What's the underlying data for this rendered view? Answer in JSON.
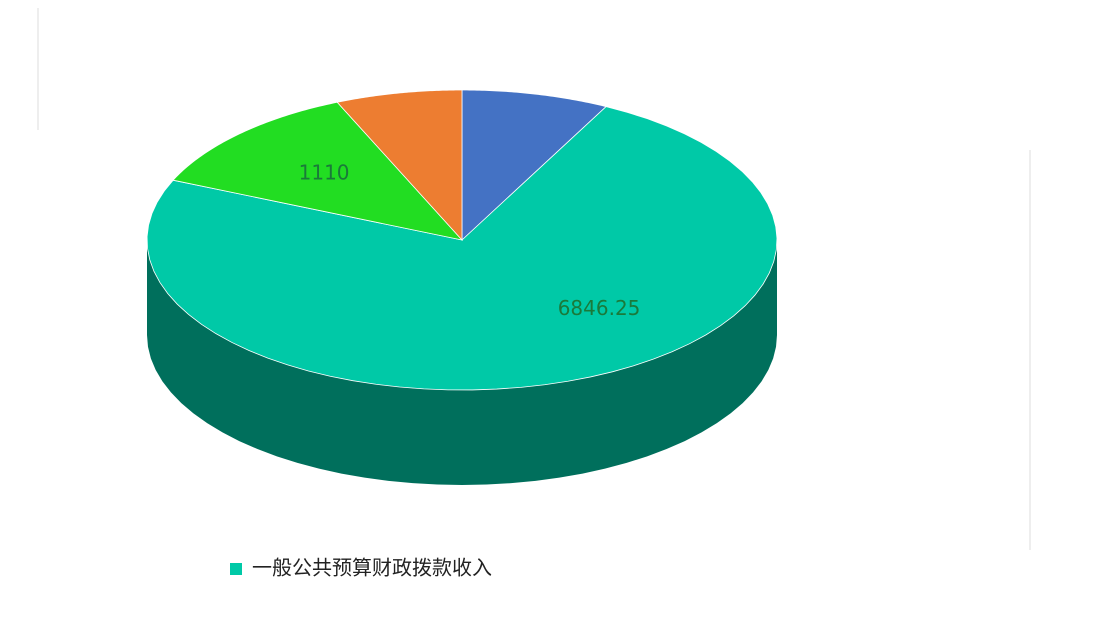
{
  "chart_data": {
    "type": "pie3d",
    "categories": [
      null,
      "一般公共预算财政拨款收入",
      null,
      null
    ],
    "values": [
      700,
      6846.25,
      1110,
      600
    ],
    "colors": [
      "#4472c4",
      "#00c9a7",
      "#22dd22",
      "#ed7d31"
    ],
    "show_value_labels": [
      false,
      true,
      true,
      false
    ]
  }
}
